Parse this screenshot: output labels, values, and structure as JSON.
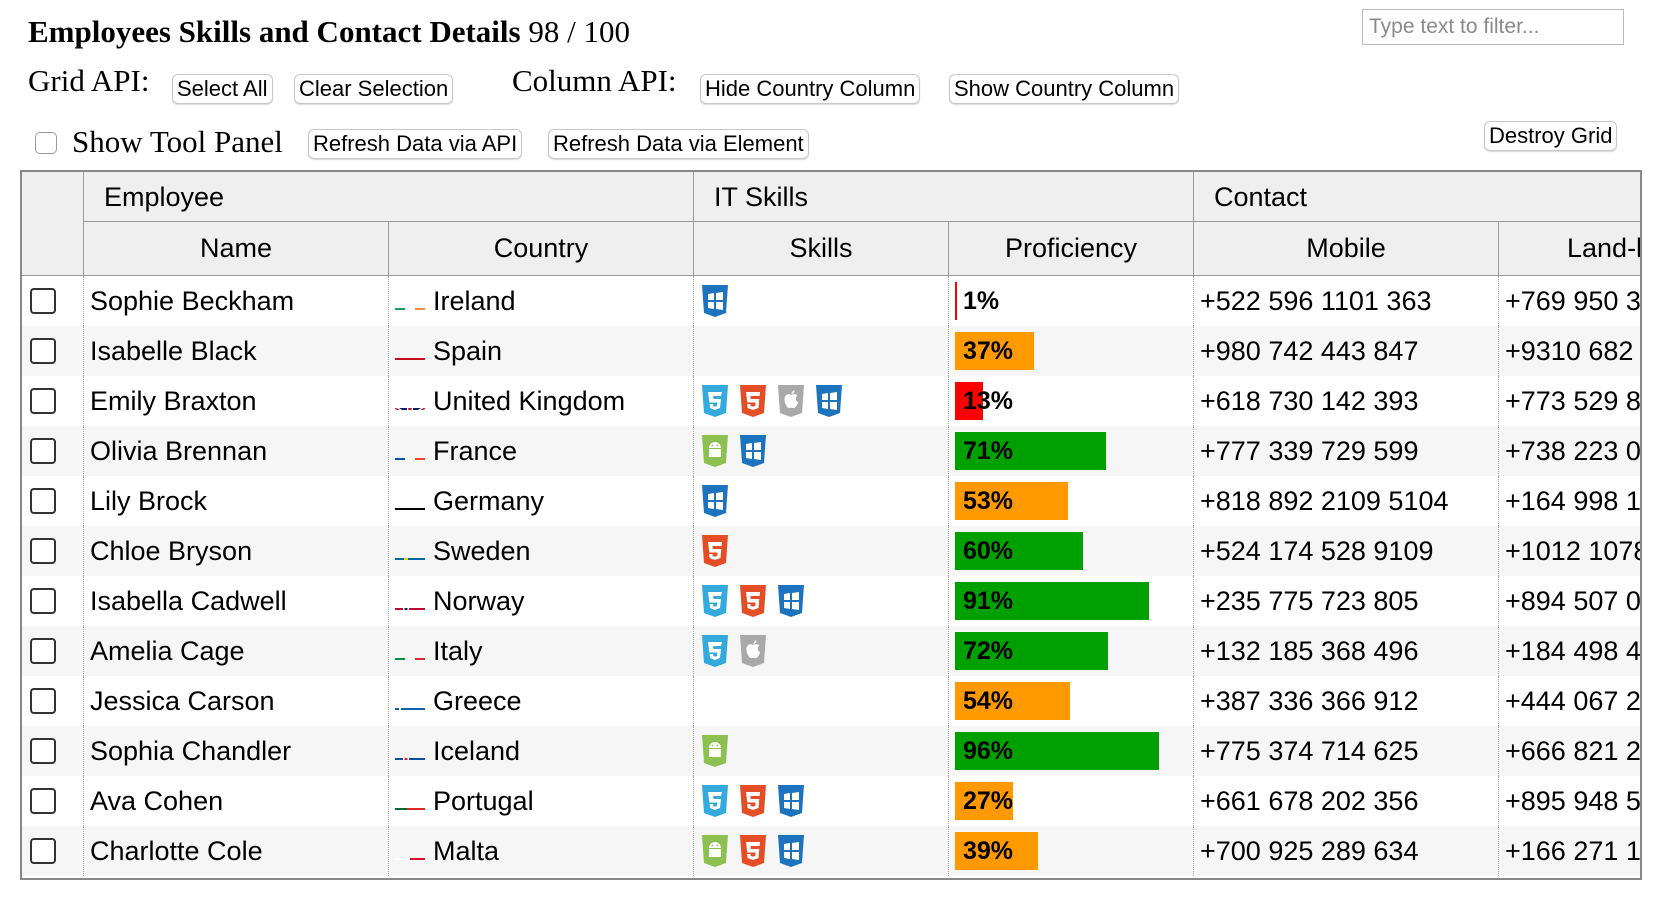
{
  "header": {
    "title": "Employees Skills and Contact Details",
    "row_count": "98 / 100",
    "filter_placeholder": "Type text to filter..."
  },
  "grid_api": {
    "label": "Grid API:",
    "select_all": "Select All",
    "clear_selection": "Clear Selection"
  },
  "column_api": {
    "label": "Column API:",
    "hide_country": "Hide Country Column",
    "show_country": "Show Country Column"
  },
  "tool_panel": {
    "label": "Show Tool Panel",
    "checked": false,
    "refresh_api": "Refresh Data via API",
    "refresh_element": "Refresh Data via Element",
    "destroy_grid": "Destroy Grid"
  },
  "colors": {
    "bar_red": "#ff0000",
    "bar_orange": "#ff9900",
    "bar_green": "#00a000"
  },
  "grid": {
    "groups": {
      "employee": "Employee",
      "it_skills": "IT Skills",
      "contact": "Contact"
    },
    "columns": {
      "name": "Name",
      "country": "Country",
      "skills": "Skills",
      "proficiency": "Proficiency",
      "mobile": "Mobile",
      "landline": "Land-l"
    },
    "rows": [
      {
        "name": "Sophie Beckham",
        "flag": "ireland-flag",
        "country": "Ireland",
        "skills": [
          "windows-icon"
        ],
        "proficiency": 1,
        "proficiency_label": "1%",
        "mobile": "+522 596 1101 363",
        "landline": "+769 950 3"
      },
      {
        "name": "Isabelle Black",
        "flag": "spain-flag",
        "country": "Spain",
        "skills": [],
        "proficiency": 37,
        "proficiency_label": "37%",
        "mobile": "+980 742 443 847",
        "landline": "+9310 682"
      },
      {
        "name": "Emily Braxton",
        "flag": "uk-flag",
        "country": "United Kingdom",
        "skills": [
          "css-icon",
          "html5-icon",
          "mac-icon",
          "windows-icon"
        ],
        "proficiency": 13,
        "proficiency_label": "13%",
        "mobile": "+618 730 142 393",
        "landline": "+773 529 8"
      },
      {
        "name": "Olivia Brennan",
        "flag": "france-flag",
        "country": "France",
        "skills": [
          "android-icon",
          "windows-icon"
        ],
        "proficiency": 71,
        "proficiency_label": "71%",
        "mobile": "+777 339 729 599",
        "landline": "+738 223 0"
      },
      {
        "name": "Lily Brock",
        "flag": "germany-flag",
        "country": "Germany",
        "skills": [
          "windows-icon"
        ],
        "proficiency": 53,
        "proficiency_label": "53%",
        "mobile": "+818 892 2109 5104",
        "landline": "+164 998 1"
      },
      {
        "name": "Chloe Bryson",
        "flag": "sweden-flag",
        "country": "Sweden",
        "skills": [
          "html5-icon"
        ],
        "proficiency": 60,
        "proficiency_label": "60%",
        "mobile": "+524 174 528 9109",
        "landline": "+1012 1078"
      },
      {
        "name": "Isabella Cadwell",
        "flag": "norway-flag",
        "country": "Norway",
        "skills": [
          "css-icon",
          "html5-icon",
          "windows-icon"
        ],
        "proficiency": 91,
        "proficiency_label": "91%",
        "mobile": "+235 775 723 805",
        "landline": "+894 507 0"
      },
      {
        "name": "Amelia Cage",
        "flag": "italy-flag",
        "country": "Italy",
        "skills": [
          "css-icon",
          "mac-icon"
        ],
        "proficiency": 72,
        "proficiency_label": "72%",
        "mobile": "+132 185 368 496",
        "landline": "+184 498 4"
      },
      {
        "name": "Jessica Carson",
        "flag": "greece-flag",
        "country": "Greece",
        "skills": [],
        "proficiency": 54,
        "proficiency_label": "54%",
        "mobile": "+387 336 366 912",
        "landline": "+444 067 2"
      },
      {
        "name": "Sophia Chandler",
        "flag": "iceland-flag",
        "country": "Iceland",
        "skills": [
          "android-icon"
        ],
        "proficiency": 96,
        "proficiency_label": "96%",
        "mobile": "+775 374 714 625",
        "landline": "+666 821 2"
      },
      {
        "name": "Ava Cohen",
        "flag": "portugal-flag",
        "country": "Portugal",
        "skills": [
          "css-icon",
          "html5-icon",
          "windows-icon"
        ],
        "proficiency": 27,
        "proficiency_label": "27%",
        "mobile": "+661 678 202 356",
        "landline": "+895 948 5"
      },
      {
        "name": "Charlotte Cole",
        "flag": "malta-flag",
        "country": "Malta",
        "skills": [
          "android-icon",
          "html5-icon",
          "windows-icon"
        ],
        "proficiency": 39,
        "proficiency_label": "39%",
        "mobile": "+700 925 289 634",
        "landline": "+166 271 1"
      }
    ]
  }
}
